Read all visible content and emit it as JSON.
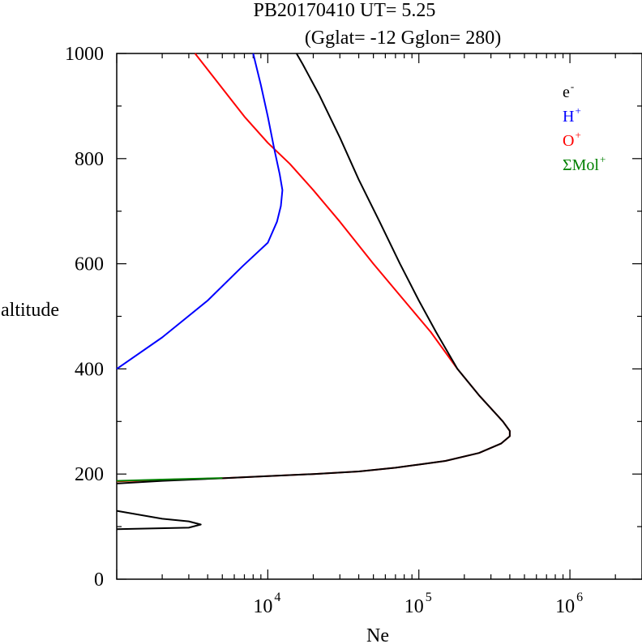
{
  "chart_data": {
    "type": "line",
    "title": "PB20170410   UT=  5.25",
    "subtitle": "(Gglat= -12   Gglon=  280)",
    "xlabel": "Ne",
    "ylabel": "altitude",
    "x_scale": "log",
    "xlim": [
      1000,
      3000000
    ],
    "ylim": [
      0,
      1000
    ],
    "y_ticks": [
      "0",
      "200",
      "400",
      "600",
      "800",
      "1000"
    ],
    "y_tick_values": [
      0,
      200,
      400,
      600,
      800,
      1000
    ],
    "x_ticks": [
      {
        "base": "10",
        "exp": "4",
        "value": 10000
      },
      {
        "base": "10",
        "exp": "5",
        "value": 100000
      },
      {
        "base": "10",
        "exp": "6",
        "value": 1000000
      }
    ],
    "legend_position": "top-right",
    "legend": [
      {
        "base": "e",
        "sup": "-",
        "color": "#000000"
      },
      {
        "base": "H",
        "sup": "+",
        "color": "#0000ff"
      },
      {
        "base": "O",
        "sup": "+",
        "color": "#ff0000"
      },
      {
        "base": "ΣMol",
        "sup": "+",
        "color": "#008000"
      }
    ],
    "series": [
      {
        "color": "#ff0000",
        "points": [
          [
            1000,
            186
          ],
          [
            2000,
            189
          ],
          [
            5000,
            192
          ],
          [
            10000,
            196
          ],
          [
            20000,
            200
          ],
          [
            40000,
            205
          ],
          [
            70000,
            212
          ],
          [
            100000,
            218
          ],
          [
            150000,
            225
          ],
          [
            250000,
            240
          ],
          [
            350000,
            258
          ],
          [
            400000,
            272
          ],
          [
            400000,
            282
          ],
          [
            360000,
            300
          ],
          [
            250000,
            350
          ],
          [
            180000,
            400
          ],
          [
            120000,
            470
          ],
          [
            80000,
            530
          ],
          [
            50000,
            600
          ],
          [
            30000,
            680
          ],
          [
            20000,
            740
          ],
          [
            14000,
            790
          ],
          [
            10000,
            830
          ],
          [
            7000,
            880
          ],
          [
            4800,
            940
          ],
          [
            3300,
            1000
          ]
        ]
      },
      {
        "color": "#0000ff",
        "points": [
          [
            1000,
            400
          ],
          [
            2000,
            460
          ],
          [
            4000,
            530
          ],
          [
            6800,
            595
          ],
          [
            10000,
            640
          ],
          [
            11500,
            680
          ],
          [
            12200,
            710
          ],
          [
            12500,
            740
          ],
          [
            12000,
            770
          ],
          [
            11000,
            820
          ],
          [
            10000,
            880
          ],
          [
            9000,
            940
          ],
          [
            8000,
            1000
          ]
        ]
      },
      {
        "color": "#000000",
        "points": [
          [
            1000,
            95
          ],
          [
            3000,
            98
          ],
          [
            3600,
            104
          ],
          [
            3000,
            110
          ],
          [
            2000,
            115
          ],
          [
            1000,
            130
          ]
        ]
      },
      {
        "color": "#000000",
        "points": [
          [
            1000,
            182
          ],
          [
            2000,
            187
          ],
          [
            5000,
            192
          ],
          [
            10000,
            196
          ],
          [
            20000,
            200
          ],
          [
            40000,
            205
          ],
          [
            70000,
            212
          ],
          [
            100000,
            218
          ],
          [
            150000,
            225
          ],
          [
            250000,
            240
          ],
          [
            350000,
            258
          ],
          [
            400000,
            272
          ],
          [
            400000,
            282
          ],
          [
            360000,
            300
          ],
          [
            250000,
            350
          ],
          [
            180000,
            400
          ],
          [
            130000,
            470
          ],
          [
            100000,
            530
          ],
          [
            75000,
            600
          ],
          [
            55000,
            680
          ],
          [
            40000,
            760
          ],
          [
            30000,
            840
          ],
          [
            22000,
            920
          ],
          [
            17000,
            980
          ],
          [
            15500,
            1000
          ]
        ]
      },
      {
        "color": "#008000",
        "points": [
          [
            1000,
            187
          ],
          [
            2000,
            189.5
          ],
          [
            5000,
            192.5
          ]
        ]
      }
    ]
  }
}
